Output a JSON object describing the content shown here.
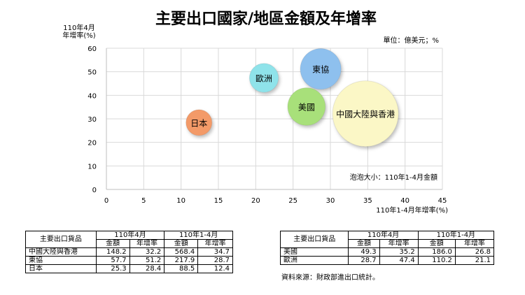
{
  "chart_data": {
    "type": "bubble",
    "title": "主要出口國家/地區金額及年增率",
    "ylabel_line1": "110年4月",
    "ylabel_line2": "年增率(%)",
    "xlabel": "110年1-4月年增率(%)",
    "unit_note": "單位：億美元；%",
    "size_note": "泡泡大小：110年1-4月金額",
    "xlim": [
      0,
      45
    ],
    "ylim": [
      0,
      60
    ],
    "xticks": [
      "0",
      "5",
      "10",
      "15",
      "20",
      "25",
      "30",
      "35",
      "40",
      "45"
    ],
    "yticks": [
      "0",
      "10",
      "20",
      "30",
      "40",
      "50",
      "60"
    ],
    "grid": true,
    "points": [
      {
        "name": "中國大陸與香港",
        "x": 34.7,
        "y": 32.2,
        "size": 568.4,
        "color": "#fbf7c6"
      },
      {
        "name": "東協",
        "x": 28.7,
        "y": 51.2,
        "size": 217.9,
        "color": "#8ec0ee"
      },
      {
        "name": "美國",
        "x": 26.8,
        "y": 35.2,
        "size": 186.0,
        "color": "#a8e07a"
      },
      {
        "name": "歐洲",
        "x": 21.1,
        "y": 47.4,
        "size": 110.2,
        "color": "#8fe3ea"
      },
      {
        "name": "日本",
        "x": 12.4,
        "y": 28.4,
        "size": 88.5,
        "color": "#f39a68"
      }
    ]
  },
  "table_left": {
    "header_goods": "主要出口貨品",
    "group1": "110年4月",
    "group2": "110年1-4月",
    "sub": [
      "金額",
      "年增率",
      "金額",
      "年增率"
    ],
    "rows": [
      [
        "中國大陸與香港",
        "148.2",
        "32.2",
        "568.4",
        "34.7"
      ],
      [
        "東協",
        "57.7",
        "51.2",
        "217.9",
        "28.7"
      ],
      [
        "日本",
        "25.3",
        "28.4",
        "88.5",
        "12.4"
      ]
    ]
  },
  "table_right": {
    "header_goods": "主要出口貨品",
    "group1": "110年4月",
    "group2": "110年1-4月",
    "sub": [
      "金額",
      "年增率",
      "金額",
      "年增率"
    ],
    "rows": [
      [
        "美國",
        "49.3",
        "35.2",
        "186.0",
        "26.8"
      ],
      [
        "歐洲",
        "28.7",
        "47.4",
        "110.2",
        "21.1"
      ]
    ]
  },
  "source_note": "資料來源：財政部進出口統計。"
}
